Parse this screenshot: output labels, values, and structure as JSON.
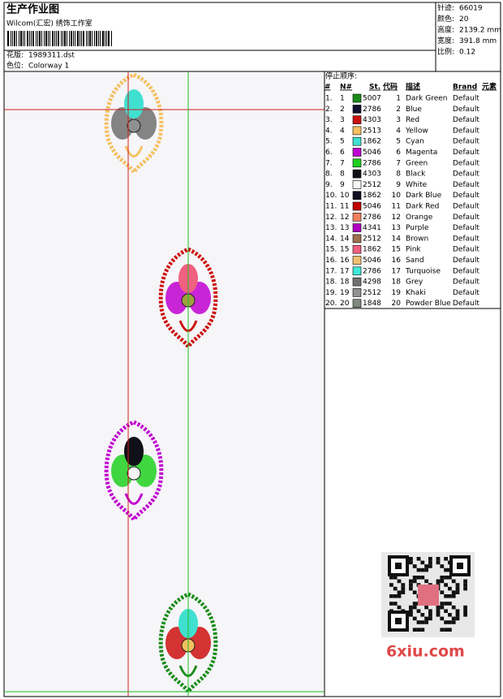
{
  "header": {
    "title": "生产作业图",
    "subtitle": "Wilcom(汇宏) 绣饰工作室",
    "design_label": "花版:",
    "design": "1989311.dst",
    "colorway_label": "色位:",
    "colorway": "Colorway 1"
  },
  "stats": [
    [
      "针迹:",
      "66019"
    ],
    [
      "颜色:",
      "20"
    ],
    [
      "高度:",
      "2139.2 mm"
    ],
    [
      "宽度:",
      "391.8 mm"
    ],
    [
      "比例:",
      "0.12"
    ]
  ],
  "sequence": {
    "title": "停止顺序:",
    "columns": [
      "#",
      "N#",
      "St.",
      "代码",
      "描述",
      "Brand",
      "元素"
    ],
    "rows": [
      {
        "num": "1.",
        "needle": "1",
        "color": "#1a8c1a",
        "st": "5007",
        "code": "1",
        "desc": "Dark Green",
        "brand": "Default"
      },
      {
        "num": "2.",
        "needle": "2",
        "color": "#101030",
        "st": "2786",
        "code": "2",
        "desc": "Blue",
        "brand": "Default"
      },
      {
        "num": "3.",
        "needle": "3",
        "color": "#cc1010",
        "st": "4303",
        "code": "3",
        "desc": "Red",
        "brand": "Default"
      },
      {
        "num": "4.",
        "needle": "4",
        "color": "#f5c060",
        "st": "2513",
        "code": "4",
        "desc": "Yellow",
        "brand": "Default"
      },
      {
        "num": "5.",
        "needle": "5",
        "color": "#40e0d0",
        "st": "1862",
        "code": "5",
        "desc": "Cyan",
        "brand": "Default"
      },
      {
        "num": "6.",
        "needle": "6",
        "color": "#c000d0",
        "st": "5046",
        "code": "6",
        "desc": "Magenta",
        "brand": "Default"
      },
      {
        "num": "7.",
        "needle": "7",
        "color": "#20d020",
        "st": "2786",
        "code": "7",
        "desc": "Green",
        "brand": "Default"
      },
      {
        "num": "8.",
        "needle": "8",
        "color": "#101018",
        "st": "4303",
        "code": "8",
        "desc": "Black",
        "brand": "Default"
      },
      {
        "num": "9.",
        "needle": "9",
        "color": "#f4f4f4",
        "st": "2512",
        "code": "9",
        "desc": "White",
        "brand": "Default"
      },
      {
        "num": "10.",
        "needle": "10",
        "color": "#101020",
        "st": "1862",
        "code": "10",
        "desc": "Dark Blue",
        "brand": "Default"
      },
      {
        "num": "11.",
        "needle": "11",
        "color": "#c00000",
        "st": "5046",
        "code": "11",
        "desc": "Dark Red",
        "brand": "Default"
      },
      {
        "num": "12.",
        "needle": "12",
        "color": "#f08060",
        "st": "2786",
        "code": "12",
        "desc": "Orange",
        "brand": "Default"
      },
      {
        "num": "13.",
        "needle": "13",
        "color": "#b000c0",
        "st": "4341",
        "code": "13",
        "desc": "Purple",
        "brand": "Default"
      },
      {
        "num": "14.",
        "needle": "14",
        "color": "#a07050",
        "st": "2512",
        "code": "14",
        "desc": "Brown",
        "brand": "Default"
      },
      {
        "num": "15.",
        "needle": "15",
        "color": "#f06080",
        "st": "1862",
        "code": "15",
        "desc": "Pink",
        "brand": "Default"
      },
      {
        "num": "16.",
        "needle": "16",
        "color": "#f0c070",
        "st": "5046",
        "code": "16",
        "desc": "Sand",
        "brand": "Default"
      },
      {
        "num": "17.",
        "needle": "17",
        "color": "#40e8d8",
        "st": "2786",
        "code": "17",
        "desc": "Turquoise",
        "brand": "Default"
      },
      {
        "num": "18.",
        "needle": "18",
        "color": "#707070",
        "st": "4298",
        "code": "18",
        "desc": "Grey",
        "brand": "Default"
      },
      {
        "num": "19.",
        "needle": "19",
        "color": "#909090",
        "st": "2512",
        "code": "19",
        "desc": "Khaki",
        "brand": "Default"
      },
      {
        "num": "20.",
        "needle": "20",
        "color": "#808880",
        "st": "1848",
        "code": "20",
        "desc": "Powder Blue",
        "brand": "Default"
      }
    ]
  },
  "watermark": {
    "text": "6xiu.com"
  }
}
